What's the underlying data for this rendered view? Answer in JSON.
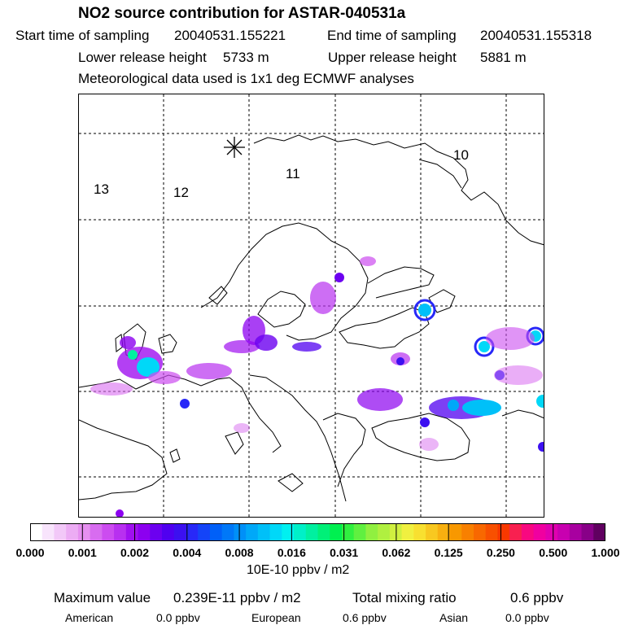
{
  "header": {
    "title": "NO2 source contribution for ASTAR-040531a",
    "start_label": "Start time of sampling",
    "start_value": "20040531.155221",
    "end_label": "End time of sampling",
    "end_value": "20040531.155318",
    "lower_label": "Lower release height",
    "lower_value": "5733 m",
    "upper_label": "Upper release height",
    "upper_value": "5881 m",
    "meteo": "Meteorological data used is 1x1 deg ECMWF analyses"
  },
  "map": {
    "release_marker": "asterisk-icon",
    "trajectory_day_labels": [
      "13",
      "12",
      "11",
      "10"
    ]
  },
  "colorbar": {
    "ticks": [
      "0.000",
      "0.001",
      "0.002",
      "0.004",
      "0.008",
      "0.016",
      "0.031",
      "0.062",
      "0.125",
      "0.250",
      "0.500",
      "1.000"
    ],
    "colors": [
      "#ffffff",
      "#f8e4fc",
      "#f2c8f8",
      "#ecacf4",
      "#e690f0",
      "#d86cf0",
      "#cc4cf0",
      "#b830f0",
      "#a010f0",
      "#8c00f0",
      "#6c00f0",
      "#5000f0",
      "#3c10f0",
      "#2828f8",
      "#1444f8",
      "#0060f8",
      "#0078f8",
      "#0090f8",
      "#00a8f8",
      "#00c0f8",
      "#00d8f8",
      "#00f0f0",
      "#00f0c8",
      "#00f0a0",
      "#00f078",
      "#00f050",
      "#30f040",
      "#60f040",
      "#90f040",
      "#b0f040",
      "#d0f040",
      "#f0f040",
      "#f8e030",
      "#f8c820",
      "#f8b010",
      "#f89800",
      "#f88000",
      "#f86800",
      "#f85000",
      "#f83800",
      "#f82050",
      "#f80880",
      "#f000a0",
      "#e000b0",
      "#c800b0",
      "#a800a0",
      "#880088",
      "#600060"
    ],
    "units": "10E-10 ppbv / m2"
  },
  "footer": {
    "max_label": "Maximum value",
    "max_value": "0.239E-11 ppbv / m2",
    "total_label": "Total mixing ratio",
    "total_value": "0.6 ppbv",
    "regions": [
      {
        "name": "American",
        "value": "0.0 ppbv"
      },
      {
        "name": "European",
        "value": "0.6 ppbv"
      },
      {
        "name": "Asian",
        "value": "0.0 ppbv"
      }
    ]
  }
}
